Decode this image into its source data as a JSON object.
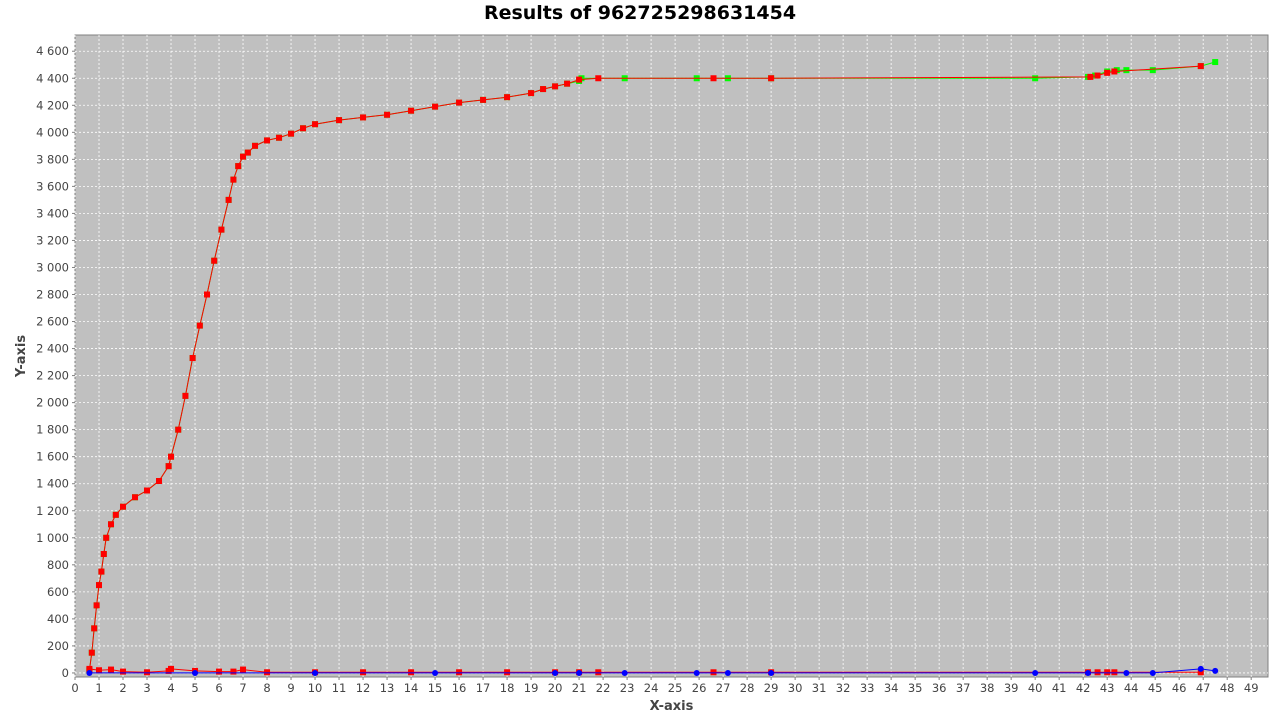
{
  "colors": {
    "plot_background": "#c0c0c0",
    "grid": "#ffffff",
    "green_series": "#00ff00",
    "red_series": "#ff0000",
    "blue_series": "#0000ff"
  },
  "chart_data": {
    "type": "line",
    "title": "Results of 962725298631454",
    "xlabel": "X-axis",
    "ylabel": "Y-axis",
    "xlim": [
      0,
      49.7
    ],
    "ylim": [
      -30,
      4720
    ],
    "grid": true,
    "legend": "none",
    "x_ticks": [
      0,
      1,
      2,
      3,
      4,
      5,
      6,
      7,
      8,
      9,
      10,
      11,
      12,
      13,
      14,
      15,
      16,
      17,
      18,
      19,
      20,
      21,
      22,
      23,
      24,
      25,
      26,
      27,
      28,
      29,
      30,
      31,
      32,
      33,
      34,
      35,
      36,
      37,
      38,
      39,
      40,
      41,
      42,
      43,
      44,
      45,
      46,
      47,
      48,
      49
    ],
    "y_ticks": [
      0,
      200,
      400,
      600,
      800,
      1000,
      1200,
      1400,
      1600,
      1800,
      2000,
      2200,
      2400,
      2600,
      2800,
      3000,
      3200,
      3400,
      3600,
      3800,
      4000,
      4200,
      4400,
      4600
    ],
    "y_tick_labels": [
      "0",
      "200",
      "400",
      "600",
      "800",
      "1 000",
      "1 200",
      "1 400",
      "1 600",
      "1 800",
      "2 000",
      "2 200",
      "2 400",
      "2 600",
      "2 800",
      "3 000",
      "3 200",
      "3 400",
      "3 600",
      "3 800",
      "4 000",
      "4 200",
      "4 400",
      "4 600"
    ],
    "series": [
      {
        "color": "#00ff00",
        "marker": "square",
        "x": [
          0.6,
          0.7,
          0.8,
          0.9,
          1.0,
          1.1,
          1.2,
          1.3,
          1.5,
          1.7,
          2.0,
          2.5,
          3.0,
          3.5,
          3.9,
          4.0,
          4.3,
          4.6,
          4.9,
          5.2,
          5.5,
          5.8,
          6.1,
          6.4,
          6.6,
          6.8,
          7.0,
          7.2,
          7.5,
          8.0,
          8.5,
          9.0,
          9.5,
          10.0,
          11.0,
          12.0,
          13.0,
          14.0,
          15.0,
          16.0,
          17.0,
          18.0,
          19.0,
          19.5,
          20.0,
          20.5,
          21.0,
          21.1,
          22.9,
          25.9,
          27.2,
          29.0,
          40.0,
          42.2,
          42.5,
          43.0,
          43.4,
          43.8,
          44.9,
          46.9,
          47.5
        ],
        "y": [
          20,
          150,
          330,
          500,
          650,
          750,
          880,
          1000,
          1100,
          1170,
          1230,
          1300,
          1350,
          1420,
          1530,
          1600,
          1800,
          2050,
          2330,
          2570,
          2800,
          3050,
          3280,
          3500,
          3650,
          3750,
          3820,
          3850,
          3900,
          3940,
          3960,
          3990,
          4030,
          4060,
          4090,
          4110,
          4130,
          4160,
          4190,
          4220,
          4240,
          4260,
          4290,
          4320,
          4340,
          4360,
          4380,
          4400,
          4400,
          4400,
          4400,
          4400,
          4400,
          4410,
          4420,
          4450,
          4460,
          4460,
          4460,
          4490,
          4520
        ]
      },
      {
        "color": "#ff0000",
        "marker": "square",
        "x": [
          0.6,
          0.7,
          0.8,
          0.9,
          1.0,
          1.1,
          1.2,
          1.3,
          1.5,
          1.7,
          2.0,
          2.5,
          3.0,
          3.5,
          3.9,
          4.0,
          4.3,
          4.6,
          4.9,
          5.2,
          5.5,
          5.8,
          6.1,
          6.4,
          6.6,
          6.8,
          7.0,
          7.2,
          7.5,
          8.0,
          8.5,
          9.0,
          9.5,
          10.0,
          11.0,
          12.0,
          13.0,
          14.0,
          15.0,
          16.0,
          17.0,
          18.0,
          19.0,
          19.5,
          20.0,
          20.5,
          21.0,
          21.8,
          26.6,
          29.0,
          42.3,
          42.6,
          43.0,
          43.3,
          46.9
        ],
        "y": [
          20,
          150,
          330,
          500,
          650,
          750,
          880,
          1000,
          1100,
          1170,
          1230,
          1300,
          1350,
          1420,
          1530,
          1600,
          1800,
          2050,
          2330,
          2570,
          2800,
          3050,
          3280,
          3500,
          3650,
          3750,
          3820,
          3850,
          3900,
          3940,
          3960,
          3990,
          4030,
          4060,
          4090,
          4110,
          4130,
          4160,
          4190,
          4220,
          4240,
          4260,
          4290,
          4320,
          4340,
          4360,
          4390,
          4400,
          4400,
          4400,
          4410,
          4420,
          4440,
          4450,
          4490
        ]
      },
      {
        "color": "#ff0000",
        "marker": "square",
        "x": [
          0.6,
          1.0,
          1.5,
          2.0,
          3.0,
          3.9,
          4.0,
          5.0,
          6.0,
          6.6,
          7.0,
          8.0,
          10.0,
          12.0,
          14.0,
          16.0,
          18.0,
          20.0,
          21.0,
          21.8,
          26.6,
          29.0,
          42.2,
          42.6,
          43.0,
          43.3,
          46.9
        ],
        "y": [
          30,
          20,
          25,
          10,
          5,
          15,
          30,
          15,
          10,
          10,
          25,
          5,
          5,
          5,
          5,
          5,
          5,
          5,
          5,
          5,
          5,
          5,
          5,
          5,
          5,
          5,
          5
        ]
      },
      {
        "color": "#0000ff",
        "marker": "circle",
        "x": [
          0.6,
          5.0,
          10.0,
          15.0,
          20.0,
          21.0,
          22.9,
          25.9,
          27.2,
          29.0,
          40.0,
          42.2,
          43.8,
          44.9,
          46.9,
          47.5
        ],
        "y": [
          0,
          0,
          0,
          0,
          0,
          0,
          0,
          0,
          0,
          0,
          0,
          0,
          0,
          0,
          30,
          15
        ]
      }
    ]
  }
}
